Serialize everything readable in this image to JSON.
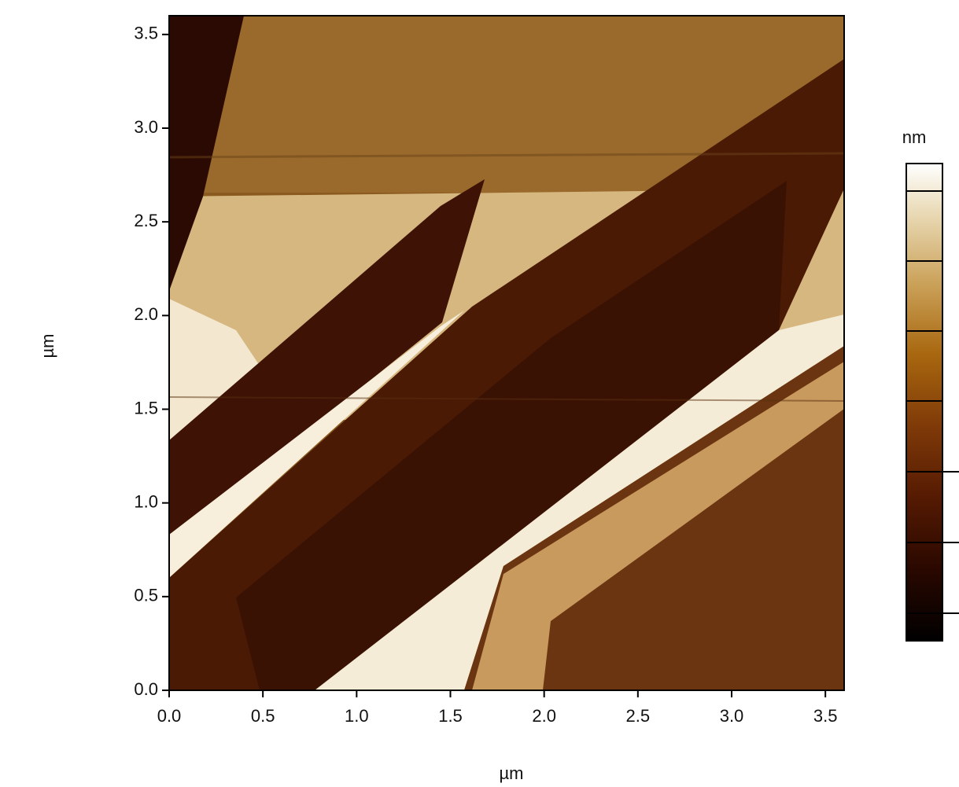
{
  "chart_data": {
    "type": "image",
    "x_label": "µm",
    "y_label": "µm",
    "colorbar_label": "nm",
    "xlim": [
      0,
      3.6
    ],
    "ylim": [
      0,
      3.6
    ],
    "xticks": [
      {
        "value": 0,
        "label": "0.0"
      },
      0.5,
      {
        "value": 1,
        "label": "1.0"
      },
      1.5,
      {
        "value": 2,
        "label": "2.0"
      },
      2.5,
      {
        "value": 3,
        "label": "3.0"
      },
      3.5
    ],
    "yticks": [
      {
        "value": 0,
        "label": "0.0"
      },
      0.5,
      {
        "value": 1,
        "label": "1.0"
      },
      1.5,
      {
        "value": 2,
        "label": "2.0"
      },
      2.5,
      {
        "value": 3,
        "label": "3.0"
      },
      3.5
    ]
  }
}
